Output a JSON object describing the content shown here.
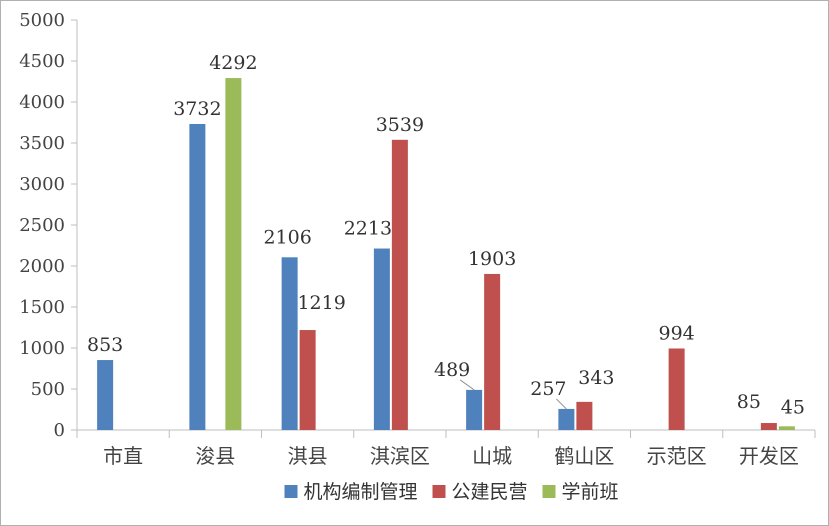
{
  "chart_data": {
    "type": "bar",
    "categories": [
      "市直",
      "浚县",
      "淇县",
      "淇滨区",
      "山城",
      "鹤山区",
      "示范区",
      "开发区"
    ],
    "series": [
      {
        "name": "机构编制管理",
        "color": "#4f81bd",
        "values": [
          853,
          3732,
          2106,
          2213,
          489,
          257,
          null,
          null
        ]
      },
      {
        "name": "公建民营",
        "color": "#c0504d",
        "values": [
          null,
          null,
          1219,
          3539,
          1903,
          343,
          994,
          85
        ]
      },
      {
        "name": "学前班",
        "color": "#9bbb59",
        "values": [
          null,
          4292,
          null,
          null,
          null,
          null,
          null,
          45
        ]
      }
    ],
    "ylim": [
      0,
      5000
    ],
    "yticks": [
      0,
      500,
      1000,
      1500,
      2000,
      2500,
      3000,
      3500,
      4000,
      4500,
      5000
    ],
    "grid": false,
    "legend": "bottom"
  }
}
